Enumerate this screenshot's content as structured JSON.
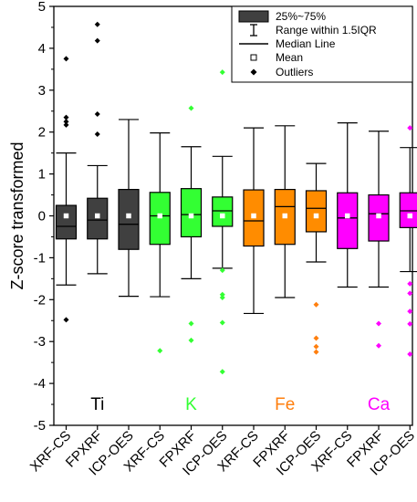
{
  "chart_data": {
    "type": "box",
    "ylabel": "Z-score transformed",
    "ylim": [
      -5,
      5
    ],
    "yticks": [
      5,
      4,
      3,
      2,
      1,
      0,
      -1,
      -2,
      -3,
      -4,
      -5
    ],
    "categories": [
      "XRF-CS",
      "FPXRF",
      "ICP-OES",
      "XRF-CS",
      "FPXRF",
      "ICP-OES",
      "XRF-CS",
      "FPXRF",
      "ICP-OES",
      "XRF-CS",
      "FPXRF",
      "ICP-OES"
    ],
    "groups": [
      {
        "label": "Ti",
        "color": "#000000",
        "fill": "#404040"
      },
      {
        "label": "K",
        "color": "#33ff33",
        "fill": "#33ff33"
      },
      {
        "label": "Fe",
        "color": "#ff7f0e",
        "fill": "#ff8c00"
      },
      {
        "label": "Ca",
        "color": "#ff00ff",
        "fill": "#ff00ff"
      }
    ],
    "boxes": [
      {
        "group": 0,
        "q1": -0.55,
        "median": -0.25,
        "q3": 0.25,
        "mean": 0.0,
        "whisker_low": -1.65,
        "whisker_high": 1.5,
        "outliers": [
          3.75,
          2.35,
          2.25,
          2.17,
          -2.48
        ]
      },
      {
        "group": 0,
        "q1": -0.55,
        "median": -0.1,
        "q3": 0.42,
        "mean": 0.0,
        "whisker_low": -1.38,
        "whisker_high": 1.2,
        "outliers": [
          4.57,
          4.18,
          2.43,
          1.95
        ]
      },
      {
        "group": 0,
        "q1": -0.8,
        "median": -0.2,
        "q3": 0.63,
        "mean": 0.0,
        "whisker_low": -1.92,
        "whisker_high": 2.3,
        "outliers": []
      },
      {
        "group": 1,
        "q1": -0.68,
        "median": 0.0,
        "q3": 0.56,
        "mean": 0.0,
        "whisker_low": -1.93,
        "whisker_high": 1.98,
        "outliers": [
          -3.22
        ]
      },
      {
        "group": 1,
        "q1": -0.5,
        "median": 0.03,
        "q3": 0.65,
        "mean": 0.0,
        "whisker_low": -1.5,
        "whisker_high": 1.65,
        "outliers": [
          2.57,
          -2.57,
          -2.97
        ]
      },
      {
        "group": 1,
        "q1": -0.25,
        "median": 0.12,
        "q3": 0.45,
        "mean": 0.0,
        "whisker_low": -1.25,
        "whisker_high": 1.42,
        "outliers": [
          3.43,
          -1.3,
          -1.88,
          -1.95,
          -2.55,
          -3.72
        ]
      },
      {
        "group": 2,
        "q1": -0.72,
        "median": -0.12,
        "q3": 0.62,
        "mean": 0.0,
        "whisker_low": -2.33,
        "whisker_high": 2.1,
        "outliers": []
      },
      {
        "group": 2,
        "q1": -0.68,
        "median": 0.22,
        "q3": 0.63,
        "mean": 0.0,
        "whisker_low": -1.95,
        "whisker_high": 2.15,
        "outliers": []
      },
      {
        "group": 2,
        "q1": -0.38,
        "median": 0.18,
        "q3": 0.6,
        "mean": 0.0,
        "whisker_low": -1.1,
        "whisker_high": 1.25,
        "outliers": [
          -2.12,
          -2.92,
          -3.12,
          -3.25
        ]
      },
      {
        "group": 3,
        "q1": -0.78,
        "median": -0.05,
        "q3": 0.55,
        "mean": 0.0,
        "whisker_low": -1.7,
        "whisker_high": 2.22,
        "outliers": []
      },
      {
        "group": 3,
        "q1": -0.6,
        "median": 0.05,
        "q3": 0.5,
        "mean": 0.0,
        "whisker_low": -1.7,
        "whisker_high": 2.02,
        "outliers": [
          -2.57,
          -3.1
        ]
      },
      {
        "group": 3,
        "q1": -0.28,
        "median": 0.12,
        "q3": 0.55,
        "mean": 0.0,
        "whisker_low": -1.33,
        "whisker_high": 1.63,
        "outliers": [
          2.1,
          -1.62,
          -1.85,
          -2.28,
          -2.58,
          -3.3
        ]
      }
    ],
    "legend": {
      "position": "top-right",
      "items": [
        {
          "label": "25%~75%",
          "symbol": "box"
        },
        {
          "label": "Range within 1.5IQR",
          "symbol": "whisker"
        },
        {
          "label": "Median Line",
          "symbol": "line"
        },
        {
          "label": "Mean",
          "symbol": "open-square"
        },
        {
          "label": "Outliers",
          "symbol": "diamond"
        }
      ]
    }
  }
}
